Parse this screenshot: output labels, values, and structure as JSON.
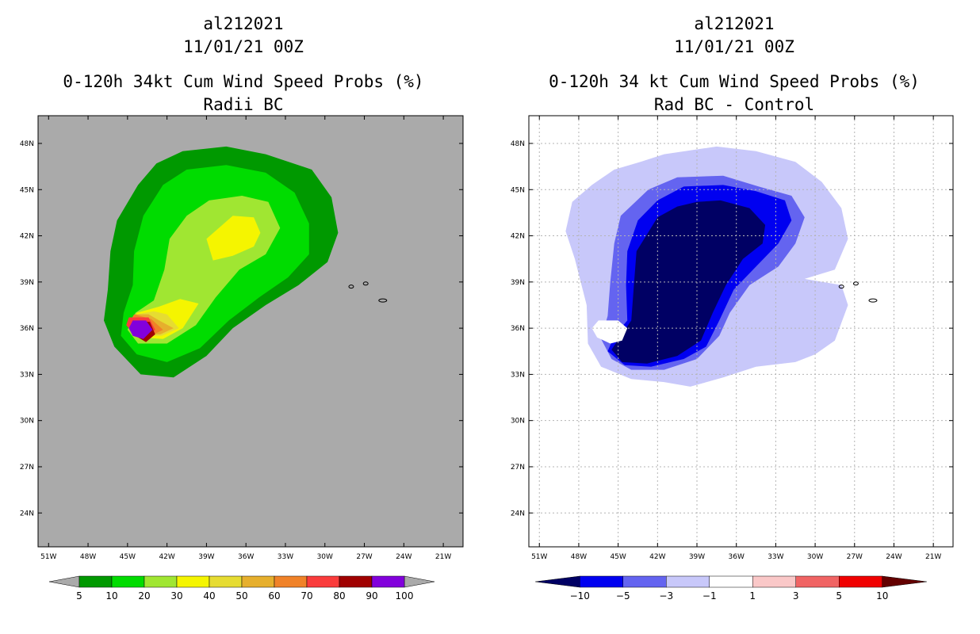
{
  "chart_data": [
    {
      "type": "heatmap",
      "title_lines": [
        "al212021",
        "11/01/21 00Z",
        "0-120h 34kt Cum Wind Speed Probs (%)",
        "Radii BC"
      ],
      "x_ticks": [
        "51W",
        "48W",
        "45W",
        "42W",
        "39W",
        "36W",
        "33W",
        "30W",
        "27W",
        "24W",
        "21W"
      ],
      "y_ticks": [
        "48N",
        "45N",
        "42N",
        "39N",
        "36N",
        "33N",
        "30N",
        "27N",
        "24N"
      ],
      "x_range_deg": [
        -51.8,
        -19.5
      ],
      "y_range_deg": [
        21.8,
        49.8
      ],
      "grid": false,
      "background_color": "#aaaaaa",
      "colorbar": {
        "labels": [
          "5",
          "10",
          "20",
          "30",
          "40",
          "50",
          "60",
          "70",
          "80",
          "90",
          "100"
        ],
        "colors": [
          "#009900",
          "#00dc00",
          "#a0e632",
          "#f5f500",
          "#e6dc32",
          "#e6af2d",
          "#f08228",
          "#fa3c3c",
          "#a00000",
          "#8200dc"
        ],
        "end_color": "#aaaaaa"
      },
      "contours": [
        {
          "level": 5,
          "color": "#009900",
          "points": [
            [
              -40.8,
              47.5
            ],
            [
              -37.5,
              47.8
            ],
            [
              -34.5,
              47.3
            ],
            [
              -31.0,
              46.3
            ],
            [
              -29.5,
              44.5
            ],
            [
              -29.0,
              42.2
            ],
            [
              -29.8,
              40.3
            ],
            [
              -32.0,
              38.8
            ],
            [
              -34.5,
              37.5
            ],
            [
              -37.0,
              36.0
            ],
            [
              -39.0,
              34.2
            ],
            [
              -41.5,
              32.8
            ],
            [
              -44.0,
              33.0
            ],
            [
              -46.0,
              34.8
            ],
            [
              -46.8,
              36.5
            ],
            [
              -46.5,
              38.5
            ],
            [
              -46.3,
              41.0
            ],
            [
              -45.8,
              43.0
            ],
            [
              -44.2,
              45.3
            ],
            [
              -42.8,
              46.7
            ]
          ]
        },
        {
          "level": 10,
          "color": "#00dc00",
          "points": [
            [
              -40.5,
              46.3
            ],
            [
              -37.5,
              46.6
            ],
            [
              -34.5,
              46.1
            ],
            [
              -32.3,
              44.8
            ],
            [
              -31.2,
              42.8
            ],
            [
              -31.2,
              40.8
            ],
            [
              -32.8,
              39.3
            ],
            [
              -35.0,
              38.0
            ],
            [
              -37.3,
              36.5
            ],
            [
              -39.5,
              34.7
            ],
            [
              -42.0,
              33.8
            ],
            [
              -44.3,
              34.3
            ],
            [
              -45.5,
              35.5
            ],
            [
              -45.3,
              37.0
            ],
            [
              -44.6,
              38.8
            ],
            [
              -44.5,
              41.0
            ],
            [
              -43.8,
              43.3
            ],
            [
              -42.3,
              45.3
            ]
          ]
        },
        {
          "level": 20,
          "color": "#a0e632",
          "points": [
            [
              -38.8,
              44.3
            ],
            [
              -36.3,
              44.6
            ],
            [
              -34.3,
              44.2
            ],
            [
              -33.4,
              42.5
            ],
            [
              -34.5,
              40.8
            ],
            [
              -36.5,
              39.8
            ],
            [
              -38.3,
              38.0
            ],
            [
              -39.8,
              36.2
            ],
            [
              -42.0,
              35.0
            ],
            [
              -44.2,
              35.0
            ],
            [
              -45.0,
              35.9
            ],
            [
              -44.4,
              37.0
            ],
            [
              -43.0,
              37.8
            ],
            [
              -42.2,
              39.8
            ],
            [
              -41.8,
              41.8
            ],
            [
              -40.5,
              43.3
            ]
          ]
        },
        {
          "level": 30,
          "color": "#f5f500",
          "points": [
            [
              -37.0,
              43.3
            ],
            [
              -35.4,
              43.2
            ],
            [
              -34.9,
              42.2
            ],
            [
              -35.4,
              41.3
            ],
            [
              -37.0,
              40.7
            ],
            [
              -38.5,
              40.4
            ],
            [
              -39.0,
              41.8
            ]
          ]
        },
        {
          "level": 30,
          "color": "#f5f500",
          "points": [
            [
              -39.6,
              37.6
            ],
            [
              -40.8,
              36.0
            ],
            [
              -42.3,
              35.3
            ],
            [
              -44.0,
              35.4
            ],
            [
              -44.8,
              36.1
            ],
            [
              -44.3,
              37.0
            ],
            [
              -42.6,
              37.4
            ],
            [
              -41.0,
              37.9
            ]
          ]
        },
        {
          "level": 40,
          "color": "#e6dc32",
          "points": [
            [
              -42.0,
              36.9
            ],
            [
              -41.1,
              36.0
            ],
            [
              -42.4,
              35.5
            ],
            [
              -44.2,
              35.5
            ],
            [
              -44.8,
              36.2
            ],
            [
              -44.3,
              36.9
            ],
            [
              -43.0,
              37.1
            ]
          ]
        },
        {
          "level": 50,
          "color": "#e6af2d",
          "points": [
            [
              -42.6,
              36.5
            ],
            [
              -41.5,
              36.0
            ],
            [
              -42.5,
              35.6
            ],
            [
              -44.2,
              35.6
            ],
            [
              -44.8,
              36.3
            ],
            [
              -44.4,
              36.9
            ],
            [
              -43.4,
              36.9
            ]
          ]
        },
        {
          "level": 60,
          "color": "#f08228",
          "points": [
            [
              -43.2,
              36.6
            ],
            [
              -42.3,
              35.9
            ],
            [
              -43.0,
              35.6
            ],
            [
              -44.3,
              35.6
            ],
            [
              -44.9,
              36.3
            ],
            [
              -44.5,
              36.9
            ]
          ]
        },
        {
          "level": 70,
          "color": "#fa3c3c",
          "points": [
            [
              -44.9,
              36.7
            ],
            [
              -43.4,
              36.7
            ],
            [
              -42.9,
              35.9
            ],
            [
              -43.5,
              35.4
            ],
            [
              -44.5,
              35.6
            ],
            [
              -45.1,
              36.2
            ]
          ]
        },
        {
          "level": 80,
          "color": "#a00000",
          "points": [
            [
              -44.6,
              36.5
            ],
            [
              -43.3,
              36.4
            ],
            [
              -42.9,
              35.6
            ],
            [
              -43.6,
              35.1
            ],
            [
              -44.4,
              35.5
            ],
            [
              -44.8,
              36.0
            ]
          ]
        },
        {
          "level": 90,
          "color": "#8200dc",
          "points": [
            [
              -44.6,
              36.5
            ],
            [
              -43.6,
              36.5
            ],
            [
              -43.1,
              35.9
            ],
            [
              -43.8,
              35.3
            ],
            [
              -44.6,
              35.5
            ],
            [
              -44.9,
              36.0
            ]
          ]
        }
      ]
    },
    {
      "type": "heatmap",
      "title_lines": [
        "al212021",
        "11/01/21 00Z",
        "0-120h 34 kt Cum Wind Speed Probs (%)",
        "Rad BC - Control"
      ],
      "x_ticks": [
        "51W",
        "48W",
        "45W",
        "42W",
        "39W",
        "36W",
        "33W",
        "30W",
        "27W",
        "24W",
        "21W"
      ],
      "y_ticks": [
        "48N",
        "45N",
        "42N",
        "39N",
        "36N",
        "33N",
        "30N",
        "27N",
        "24N"
      ],
      "x_range_deg": [
        -51.8,
        -19.5
      ],
      "y_range_deg": [
        21.8,
        49.8
      ],
      "grid": true,
      "background_color": "#ffffff",
      "colorbar": {
        "labels": [
          "-10",
          "-5",
          "-3",
          "-1",
          "1",
          "3",
          "5",
          "10"
        ],
        "colors": [
          "#000064",
          "#0000f0",
          "#6464f0",
          "#c8c8fa",
          "#ffffff",
          "#fac8c8",
          "#f06464",
          "#f00000",
          "#640000"
        ]
      },
      "contours": [
        {
          "level": -1,
          "color": "#c8c8fa",
          "points": [
            [
              -41.5,
              47.3
            ],
            [
              -37.5,
              47.8
            ],
            [
              -34.5,
              47.5
            ],
            [
              -31.5,
              46.8
            ],
            [
              -29.5,
              45.5
            ],
            [
              -28.0,
              43.8
            ],
            [
              -27.5,
              41.8
            ],
            [
              -28.5,
              39.8
            ],
            [
              -30.8,
              39.2
            ],
            [
              -28.0,
              38.8
            ],
            [
              -27.5,
              37.5
            ],
            [
              -28.5,
              35.2
            ],
            [
              -30.0,
              34.3
            ],
            [
              -31.5,
              33.8
            ],
            [
              -34.5,
              33.5
            ],
            [
              -37.0,
              32.8
            ],
            [
              -39.5,
              32.2
            ],
            [
              -41.5,
              32.5
            ],
            [
              -44.0,
              32.7
            ],
            [
              -46.3,
              33.5
            ],
            [
              -47.3,
              35.0
            ],
            [
              -47.4,
              37.5
            ],
            [
              -48.3,
              40.5
            ],
            [
              -49.0,
              42.3
            ],
            [
              -48.5,
              44.2
            ],
            [
              -47.0,
              45.3
            ],
            [
              -45.3,
              46.3
            ],
            [
              -43.3,
              46.8
            ]
          ]
        },
        {
          "level": -3,
          "color": "#6464f0",
          "points": [
            [
              -40.5,
              45.8
            ],
            [
              -37.0,
              45.9
            ],
            [
              -34.3,
              45.2
            ],
            [
              -31.8,
              44.6
            ],
            [
              -30.8,
              43.2
            ],
            [
              -31.5,
              41.5
            ],
            [
              -32.8,
              40.0
            ],
            [
              -35.0,
              38.8
            ],
            [
              -36.5,
              37.0
            ],
            [
              -37.3,
              35.5
            ],
            [
              -39.0,
              34.0
            ],
            [
              -41.5,
              33.3
            ],
            [
              -44.0,
              33.3
            ],
            [
              -45.5,
              34.0
            ],
            [
              -46.3,
              35.3
            ],
            [
              -45.8,
              36.8
            ],
            [
              -45.6,
              39.0
            ],
            [
              -45.3,
              41.5
            ],
            [
              -44.8,
              43.3
            ],
            [
              -42.7,
              45.0
            ]
          ]
        },
        {
          "level": -5,
          "color": "#0000f0",
          "points": [
            [
              -40.0,
              45.2
            ],
            [
              -37.0,
              45.3
            ],
            [
              -34.5,
              44.9
            ],
            [
              -32.3,
              44.3
            ],
            [
              -31.8,
              43.0
            ],
            [
              -32.8,
              41.5
            ],
            [
              -34.5,
              40.0
            ],
            [
              -36.2,
              38.5
            ],
            [
              -37.3,
              36.5
            ],
            [
              -38.3,
              34.8
            ],
            [
              -40.0,
              34.0
            ],
            [
              -42.5,
              33.5
            ],
            [
              -44.5,
              33.6
            ],
            [
              -45.8,
              34.5
            ],
            [
              -45.3,
              35.5
            ],
            [
              -44.3,
              36.5
            ],
            [
              -44.4,
              38.8
            ],
            [
              -44.3,
              41.0
            ],
            [
              -43.5,
              43.0
            ],
            [
              -42.0,
              44.3
            ]
          ]
        },
        {
          "level": -10,
          "color": "#000064",
          "points": [
            [
              -39.0,
              44.2
            ],
            [
              -37.2,
              44.3
            ],
            [
              -35.0,
              43.8
            ],
            [
              -33.8,
              42.7
            ],
            [
              -34.0,
              41.5
            ],
            [
              -35.5,
              40.5
            ],
            [
              -36.8,
              38.8
            ],
            [
              -37.8,
              37.0
            ],
            [
              -38.7,
              35.2
            ],
            [
              -40.5,
              34.2
            ],
            [
              -42.8,
              33.7
            ],
            [
              -44.7,
              33.8
            ],
            [
              -45.5,
              34.6
            ],
            [
              -44.8,
              35.5
            ],
            [
              -44.0,
              36.5
            ],
            [
              -43.8,
              38.8
            ],
            [
              -43.6,
              41.0
            ],
            [
              -42.0,
              43.2
            ],
            [
              -40.5,
              43.9
            ]
          ]
        },
        {
          "level": 1,
          "color": "#ffffff",
          "points": [
            [
              -46.5,
              36.5
            ],
            [
              -45.0,
              36.5
            ],
            [
              -44.3,
              36.0
            ],
            [
              -44.7,
              35.2
            ],
            [
              -45.6,
              35.0
            ],
            [
              -46.6,
              35.4
            ],
            [
              -47.0,
              36.0
            ]
          ]
        }
      ],
      "islands": [
        [
          -28.0,
          38.7
        ],
        [
          -26.9,
          38.9
        ],
        [
          -25.6,
          37.8
        ]
      ]
    }
  ]
}
